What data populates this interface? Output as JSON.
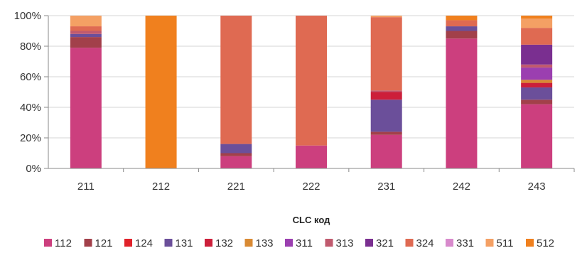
{
  "chart_data": {
    "type": "bar",
    "stacked": true,
    "percent": true,
    "categories": [
      "211",
      "212",
      "221",
      "222",
      "231",
      "242",
      "243"
    ],
    "xlabel": "CLC код",
    "ylabel": "",
    "ylim": [
      0,
      100
    ],
    "yticks": [
      "0%",
      "20%",
      "40%",
      "60%",
      "80%",
      "100%"
    ],
    "grid": true,
    "legend": "bottom",
    "series": [
      {
        "name": "112",
        "color": "#cc3f7e",
        "values": [
          79,
          0,
          8,
          15,
          22,
          85,
          42
        ]
      },
      {
        "name": "121",
        "color": "#a2404a",
        "values": [
          7,
          0,
          2,
          0,
          2,
          5,
          3
        ]
      },
      {
        "name": "124",
        "color": "#e0222a",
        "values": [
          0,
          0,
          0,
          0,
          0,
          0,
          0
        ]
      },
      {
        "name": "131",
        "color": "#6b4f9a",
        "values": [
          2,
          0,
          6,
          0,
          21,
          3,
          8
        ]
      },
      {
        "name": "132",
        "color": "#cc1f3a",
        "values": [
          0,
          0,
          0,
          0,
          5,
          0,
          3
        ]
      },
      {
        "name": "133",
        "color": "#d98a33",
        "values": [
          0,
          0,
          0,
          0,
          0,
          0,
          2
        ]
      },
      {
        "name": "311",
        "color": "#9b3fb0",
        "values": [
          0,
          0,
          0,
          0,
          0,
          0,
          8
        ]
      },
      {
        "name": "313",
        "color": "#c05a6e",
        "values": [
          2,
          0,
          0,
          0,
          1,
          0,
          2
        ]
      },
      {
        "name": "321",
        "color": "#7a2f90",
        "values": [
          0,
          0,
          0,
          0,
          0,
          0,
          13
        ]
      },
      {
        "name": "324",
        "color": "#df6a52",
        "values": [
          3,
          0,
          84,
          85,
          48,
          4,
          11
        ]
      },
      {
        "name": "331",
        "color": "#d88acc",
        "values": [
          0,
          0,
          0,
          0,
          0,
          0,
          0
        ]
      },
      {
        "name": "511",
        "color": "#f4a064",
        "values": [
          7,
          0,
          0,
          0,
          1,
          0,
          6
        ]
      },
      {
        "name": "512",
        "color": "#f0801e",
        "values": [
          0,
          100,
          0,
          0,
          0,
          3,
          2
        ]
      }
    ]
  }
}
